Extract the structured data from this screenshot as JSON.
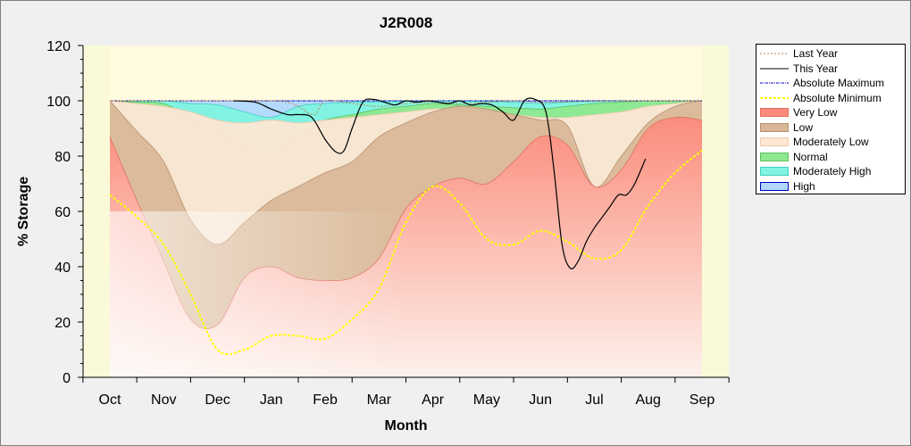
{
  "chart_data": {
    "type": "area",
    "title": "J2R008",
    "xlabel": "Month",
    "ylabel": "% Storage",
    "ylim": [
      0,
      120
    ],
    "yticks": [
      0,
      20,
      40,
      60,
      80,
      100,
      120
    ],
    "months": [
      "Oct",
      "Nov",
      "Dec",
      "Jan",
      "Feb",
      "Mar",
      "Apr",
      "May",
      "Jun",
      "Jul",
      "Aug",
      "Sep"
    ],
    "grid": false,
    "legend_position": "right",
    "bands": {
      "x": [
        0,
        0.5,
        1,
        1.5,
        2,
        2.5,
        3,
        3.5,
        4,
        4.5,
        5,
        5.5,
        6,
        6.5,
        7,
        7.5,
        8,
        8.5,
        9,
        9.5,
        10,
        10.5,
        11
      ],
      "very_low_top": [
        87,
        64,
        42,
        21,
        19,
        36,
        40,
        36,
        35,
        36,
        43,
        61,
        69,
        72,
        70,
        78,
        87,
        84,
        69,
        75,
        90,
        94,
        93
      ],
      "low_top": [
        100,
        89,
        78,
        57,
        48,
        56,
        64,
        69,
        74,
        78,
        87,
        92,
        96,
        98,
        97,
        95,
        93,
        91,
        69,
        80,
        92,
        98,
        100
      ],
      "moderately_low_top": [
        100,
        99,
        98,
        96,
        93,
        92,
        93,
        92,
        93,
        94,
        95,
        96,
        97,
        97,
        96,
        95,
        94,
        94,
        95,
        96,
        98,
        99,
        100
      ],
      "normal_top": [
        100,
        99.5,
        99,
        94,
        90,
        84,
        82,
        88,
        93,
        95,
        97,
        98,
        99,
        98.5,
        98,
        97.5,
        97,
        98,
        99,
        99.5,
        100,
        100,
        100
      ],
      "moderately_high_top": [
        100,
        100,
        100,
        99,
        98.5,
        96,
        94,
        98,
        99,
        99.5,
        99.6,
        99.8,
        100,
        100,
        99.7,
        99.5,
        99,
        99.5,
        100,
        100,
        100,
        100,
        100
      ],
      "high_top": [
        100,
        100,
        100,
        100,
        100,
        100,
        100,
        100,
        100,
        100,
        100,
        100,
        100,
        100,
        100,
        100,
        100,
        100,
        100,
        100,
        100,
        100,
        100
      ]
    },
    "series": [
      {
        "name": "Last Year",
        "x": [
          0,
          1,
          2,
          2.5,
          3,
          3.3,
          3.5,
          3.8,
          4,
          4.5,
          5,
          5.5,
          6,
          6.5,
          7,
          7.5,
          8,
          9,
          10,
          11
        ],
        "values": [
          100,
          100,
          100,
          100,
          100,
          99.5,
          98,
          95,
          100,
          99,
          98,
          99,
          99.5,
          99,
          99.5,
          100,
          99.5,
          99.8,
          100,
          100
        ]
      },
      {
        "name": "This Year",
        "x": [
          2.3,
          2.7,
          3.0,
          3.3,
          3.5,
          3.75,
          4.0,
          4.2,
          4.35,
          4.5,
          4.7,
          4.9,
          5.1,
          5.3,
          5.5,
          5.7,
          5.9,
          6.1,
          6.3,
          6.5,
          6.7,
          6.9,
          7.1,
          7.3,
          7.5,
          7.7,
          7.9,
          8.1,
          8.25,
          8.4,
          8.55,
          8.7,
          8.85,
          9.0,
          9.15,
          9.3,
          9.45,
          9.6,
          9.75,
          9.95
        ],
        "values": [
          100,
          99.5,
          97,
          95,
          95,
          94,
          86,
          81.5,
          82,
          90,
          99.5,
          100.5,
          99.5,
          98.5,
          100,
          99.5,
          100,
          99.5,
          99,
          100,
          98.5,
          99,
          98.5,
          96,
          93,
          100,
          100.5,
          96,
          75,
          48,
          39.5,
          42,
          49,
          54,
          58,
          62,
          66,
          66,
          70,
          79
        ]
      },
      {
        "name": "Absolute Maximum",
        "x": [
          0,
          2,
          3,
          5,
          6,
          8,
          9,
          11
        ],
        "values": [
          100,
          100,
          100,
          100,
          100,
          100,
          100,
          100
        ]
      },
      {
        "name": "Absolute Minimum",
        "x": [
          0,
          0.5,
          1,
          1.5,
          2,
          2.5,
          3,
          3.5,
          4,
          4.5,
          5,
          5.5,
          6,
          6.5,
          7,
          7.5,
          8,
          8.5,
          9,
          9.5,
          10,
          10.5,
          11
        ],
        "values": [
          66,
          58,
          48,
          30,
          10,
          10,
          15,
          15,
          14,
          21,
          32,
          56,
          69,
          63,
          50,
          48,
          53,
          49,
          43,
          46,
          62,
          74,
          82
        ]
      }
    ],
    "legend": [
      {
        "key": "last_year",
        "label": "Last Year",
        "kind": "line",
        "color": "#c0804a",
        "dash": "2,2",
        "width": 1
      },
      {
        "key": "this_year",
        "label": "This Year",
        "kind": "line",
        "color": "#000000",
        "dash": "",
        "width": 1
      },
      {
        "key": "abs_max",
        "label": "Absolute Maximum",
        "kind": "line",
        "color": "#0000c0",
        "dash": "3,1,1,1",
        "width": 1
      },
      {
        "key": "abs_min",
        "label": "Absolute Minimum",
        "kind": "line",
        "color": "#ffff00",
        "dash": "3,2",
        "width": 2
      },
      {
        "key": "very_low",
        "label": "Very Low",
        "kind": "band",
        "color": "#fc8a7a",
        "edge": "#e07060"
      },
      {
        "key": "low",
        "label": "Low",
        "kind": "band",
        "color": "#d9b898",
        "edge": "#b89070"
      },
      {
        "key": "moderately_low",
        "label": "Moderately Low",
        "kind": "band",
        "color": "#fde6d4",
        "edge": "#f0c8a8"
      },
      {
        "key": "normal",
        "label": "Normal",
        "kind": "band",
        "color": "#8ee890",
        "edge": "#60c060"
      },
      {
        "key": "moderately_high",
        "label": "Moderately High",
        "kind": "band",
        "color": "#80f4e0",
        "edge": "#40d0c0"
      },
      {
        "key": "high",
        "label": "High",
        "kind": "band",
        "color": "#b0d8ff",
        "edge": "#0000c0"
      }
    ],
    "colors": {
      "plot_background": "#fffbe0",
      "plot_outer_band": "#fafad8",
      "figure_background": "#f0f0f0",
      "very_low": "#fc8a7a",
      "low": "#d9b898",
      "moderately_low": "#fde6d4",
      "normal": "#8ee890",
      "moderately_high": "#80f4e0",
      "high": "#b0d8ff",
      "this_year": "#000000",
      "last_year": "#c0804a",
      "absolute_maximum": "#0000c0",
      "absolute_minimum": "#ffff00"
    }
  }
}
